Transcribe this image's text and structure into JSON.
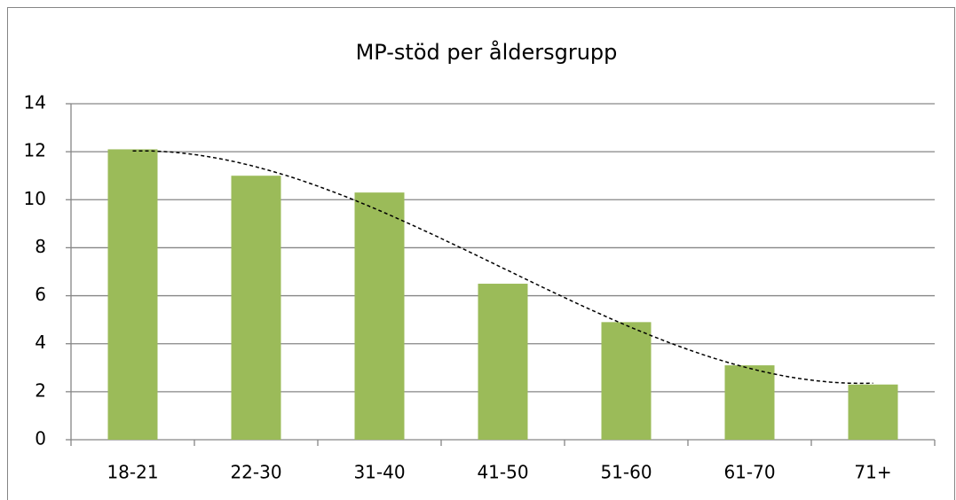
{
  "chart_data": {
    "type": "bar",
    "title": "MP-stöd per åldersgrupp",
    "categories": [
      "18-21",
      "22-30",
      "31-40",
      "41-50",
      "51-60",
      "61-70",
      "71+"
    ],
    "values": [
      12.1,
      11.0,
      10.3,
      6.5,
      4.9,
      3.1,
      2.3
    ],
    "color": "#9bbb59",
    "ylim": [
      0,
      14
    ],
    "yticks": [
      0,
      2,
      4,
      6,
      8,
      10,
      12,
      14
    ],
    "grid": true,
    "trendline": "polynomial"
  }
}
